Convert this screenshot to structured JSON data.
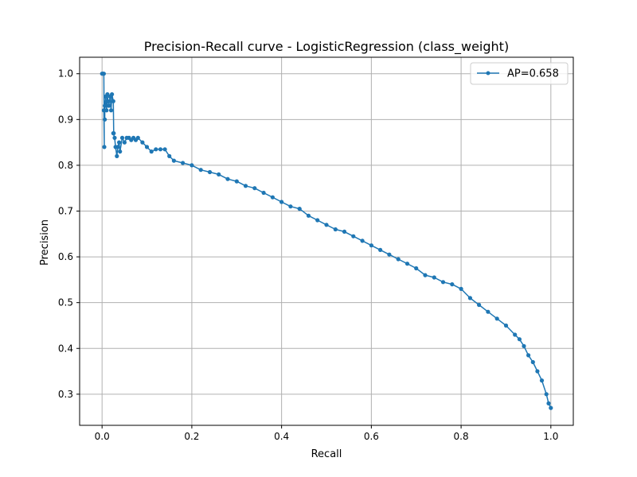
{
  "chart_data": {
    "type": "line",
    "title": "Precision-Recall curve - LogisticRegression (class_weight)",
    "xlabel": "Recall",
    "ylabel": "Precision",
    "xlim": [
      -0.05,
      1.05
    ],
    "ylim": [
      0.232,
      1.036
    ],
    "xticks": [
      0.0,
      0.2,
      0.4,
      0.6,
      0.8,
      1.0
    ],
    "xtick_labels": [
      "0.0",
      "0.2",
      "0.4",
      "0.6",
      "0.8",
      "1.0"
    ],
    "yticks": [
      0.3,
      0.4,
      0.5,
      0.6,
      0.7,
      0.8,
      0.9,
      1.0
    ],
    "ytick_labels": [
      "0.3",
      "0.4",
      "0.5",
      "0.6",
      "0.7",
      "0.8",
      "0.9",
      "1.0"
    ],
    "grid": true,
    "legend_position": "top-right",
    "series": [
      {
        "name": "AP=0.658",
        "color": "#1f77b4",
        "marker": "point",
        "x": [
          0.0,
          0.002,
          0.004,
          0.005,
          0.004,
          0.006,
          0.006,
          0.008,
          0.01,
          0.012,
          0.013,
          0.015,
          0.018,
          0.02,
          0.022,
          0.025,
          0.026,
          0.025,
          0.028,
          0.03,
          0.033,
          0.035,
          0.038,
          0.04,
          0.045,
          0.05,
          0.055,
          0.06,
          0.065,
          0.07,
          0.075,
          0.08,
          0.09,
          0.1,
          0.11,
          0.12,
          0.13,
          0.14,
          0.15,
          0.16,
          0.18,
          0.2,
          0.22,
          0.24,
          0.26,
          0.28,
          0.3,
          0.32,
          0.34,
          0.36,
          0.38,
          0.4,
          0.42,
          0.44,
          0.46,
          0.48,
          0.5,
          0.52,
          0.54,
          0.56,
          0.58,
          0.6,
          0.62,
          0.64,
          0.66,
          0.68,
          0.7,
          0.72,
          0.74,
          0.76,
          0.78,
          0.8,
          0.82,
          0.84,
          0.86,
          0.88,
          0.9,
          0.92,
          0.93,
          0.94,
          0.95,
          0.96,
          0.97,
          0.98,
          0.99,
          0.995,
          1.0
        ],
        "y": [
          1.0,
          1.0,
          1.0,
          0.84,
          0.92,
          0.9,
          0.93,
          0.95,
          0.92,
          0.955,
          0.94,
          0.93,
          0.95,
          0.92,
          0.955,
          0.94,
          0.87,
          0.87,
          0.86,
          0.84,
          0.82,
          0.84,
          0.85,
          0.83,
          0.86,
          0.85,
          0.86,
          0.86,
          0.855,
          0.86,
          0.855,
          0.86,
          0.85,
          0.84,
          0.83,
          0.835,
          0.835,
          0.835,
          0.82,
          0.81,
          0.805,
          0.8,
          0.79,
          0.785,
          0.78,
          0.77,
          0.765,
          0.755,
          0.75,
          0.74,
          0.73,
          0.72,
          0.71,
          0.705,
          0.69,
          0.68,
          0.67,
          0.66,
          0.655,
          0.645,
          0.635,
          0.625,
          0.615,
          0.605,
          0.595,
          0.585,
          0.575,
          0.56,
          0.555,
          0.545,
          0.54,
          0.53,
          0.51,
          0.495,
          0.48,
          0.465,
          0.45,
          0.43,
          0.42,
          0.405,
          0.385,
          0.37,
          0.35,
          0.33,
          0.3,
          0.28,
          0.27
        ]
      }
    ]
  }
}
